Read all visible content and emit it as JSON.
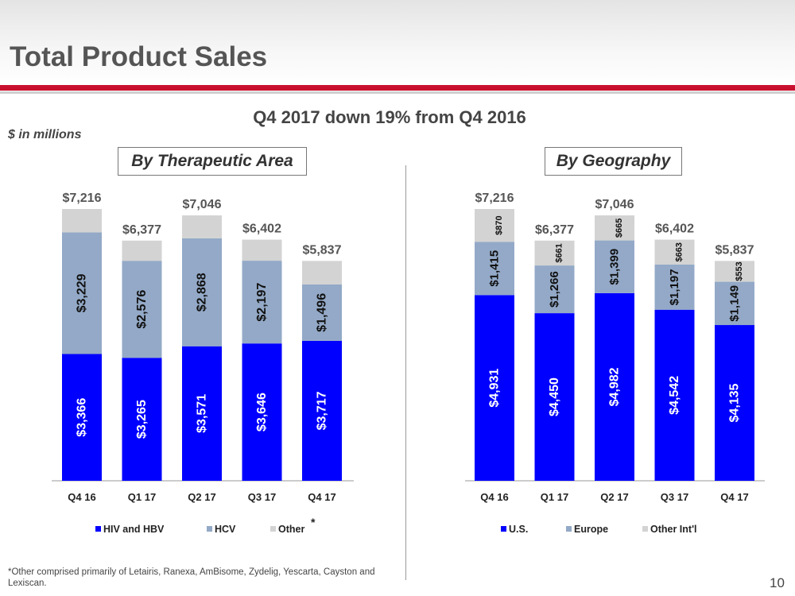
{
  "header": {
    "title": "Total Product Sales",
    "subtitle": "Q4 2017 down 19% from Q4 2016",
    "units": "$ in millions",
    "page_number": "10"
  },
  "footnote": "*Other comprised primarily of Letairis, Ranexa, AmBisome, Zydelig, Yescarta, Cayston and Lexiscan.",
  "chart_data": [
    {
      "type": "bar",
      "stacked": true,
      "title": "By Therapeutic Area",
      "categories": [
        "Q4 16",
        "Q1 17",
        "Q2 17",
        "Q3 17",
        "Q4 17"
      ],
      "totals": [
        7216,
        6377,
        7046,
        6402,
        5837
      ],
      "total_labels": [
        "$7,216",
        "$6,377",
        "$7,046",
        "$6,402",
        "$5,837"
      ],
      "series": [
        {
          "name": "HIV and HBV",
          "color": "#0000ff",
          "values": [
            3366,
            3265,
            3571,
            3646,
            3717
          ],
          "labels": [
            "$3,366",
            "$3,265",
            "$3,571",
            "$3,646",
            "$3,717"
          ],
          "label_color": "#ffffff"
        },
        {
          "name": "HCV",
          "color": "#93a9c7",
          "values": [
            3229,
            2576,
            2868,
            2197,
            1496
          ],
          "labels": [
            "$3,229",
            "$2,576",
            "$2,868",
            "$2,197",
            "$1,496"
          ],
          "label_color": "#111111"
        },
        {
          "name": "Other",
          "legend_suffix": "*",
          "color": "#d3d3d3",
          "values": [
            621,
            536,
            607,
            559,
            624
          ],
          "labels": [
            "",
            "",
            "",
            "",
            ""
          ],
          "label_color": "#111111"
        }
      ],
      "legend": "bottom",
      "grid": false
    },
    {
      "type": "bar",
      "stacked": true,
      "title": "By Geography",
      "categories": [
        "Q4 16",
        "Q1 17",
        "Q2 17",
        "Q3 17",
        "Q4 17"
      ],
      "totals": [
        7216,
        6377,
        7046,
        6402,
        5837
      ],
      "total_labels": [
        "$7,216",
        "$6,377",
        "$7,046",
        "$6,402",
        "$5,837"
      ],
      "series": [
        {
          "name": "U.S.",
          "color": "#0000ff",
          "values": [
            4931,
            4450,
            4982,
            4542,
            4135
          ],
          "labels": [
            "$4,931",
            "$4,450",
            "$4,982",
            "$4,542",
            "$4,135"
          ],
          "label_color": "#ffffff"
        },
        {
          "name": "Europe",
          "color": "#93a9c7",
          "values": [
            1415,
            1266,
            1399,
            1197,
            1149
          ],
          "labels": [
            "$1,415",
            "$1,266",
            "$1,399",
            "$1,197",
            "$1,149"
          ],
          "label_color": "#111111"
        },
        {
          "name": "Other Int'l",
          "color": "#d3d3d3",
          "values": [
            870,
            661,
            665,
            663,
            553
          ],
          "labels": [
            "$870",
            "$661",
            "$665",
            "$663",
            "$553"
          ],
          "label_color": "#111111",
          "small": true
        }
      ],
      "legend": "bottom",
      "grid": false
    }
  ]
}
